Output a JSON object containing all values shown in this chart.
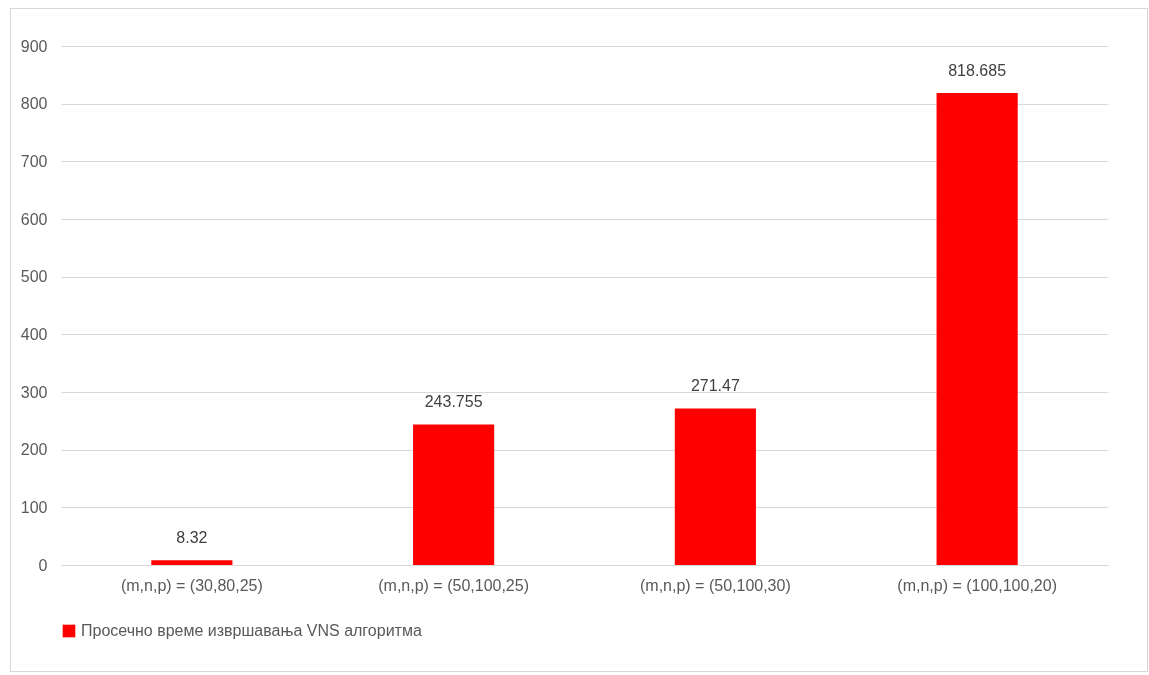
{
  "chart_data": {
    "type": "bar",
    "categories": [
      "(m,n,p) = (30,80,25)",
      "(m,n,p) = (50,100,25)",
      "(m,n,p) = (50,100,30)",
      "(m,n,p) = (100,100,20)"
    ],
    "series": [
      {
        "name": "Просечно време извршавања VNS алгоритма",
        "color": "#ff0000",
        "values": [
          8.32,
          243.755,
          271.47,
          818.685
        ]
      }
    ],
    "ylim": [
      0,
      900
    ],
    "yticks": [
      0,
      100,
      200,
      300,
      400,
      500,
      600,
      700,
      800,
      900
    ],
    "grid": "y",
    "legend": "bottom",
    "data_labels": true
  }
}
